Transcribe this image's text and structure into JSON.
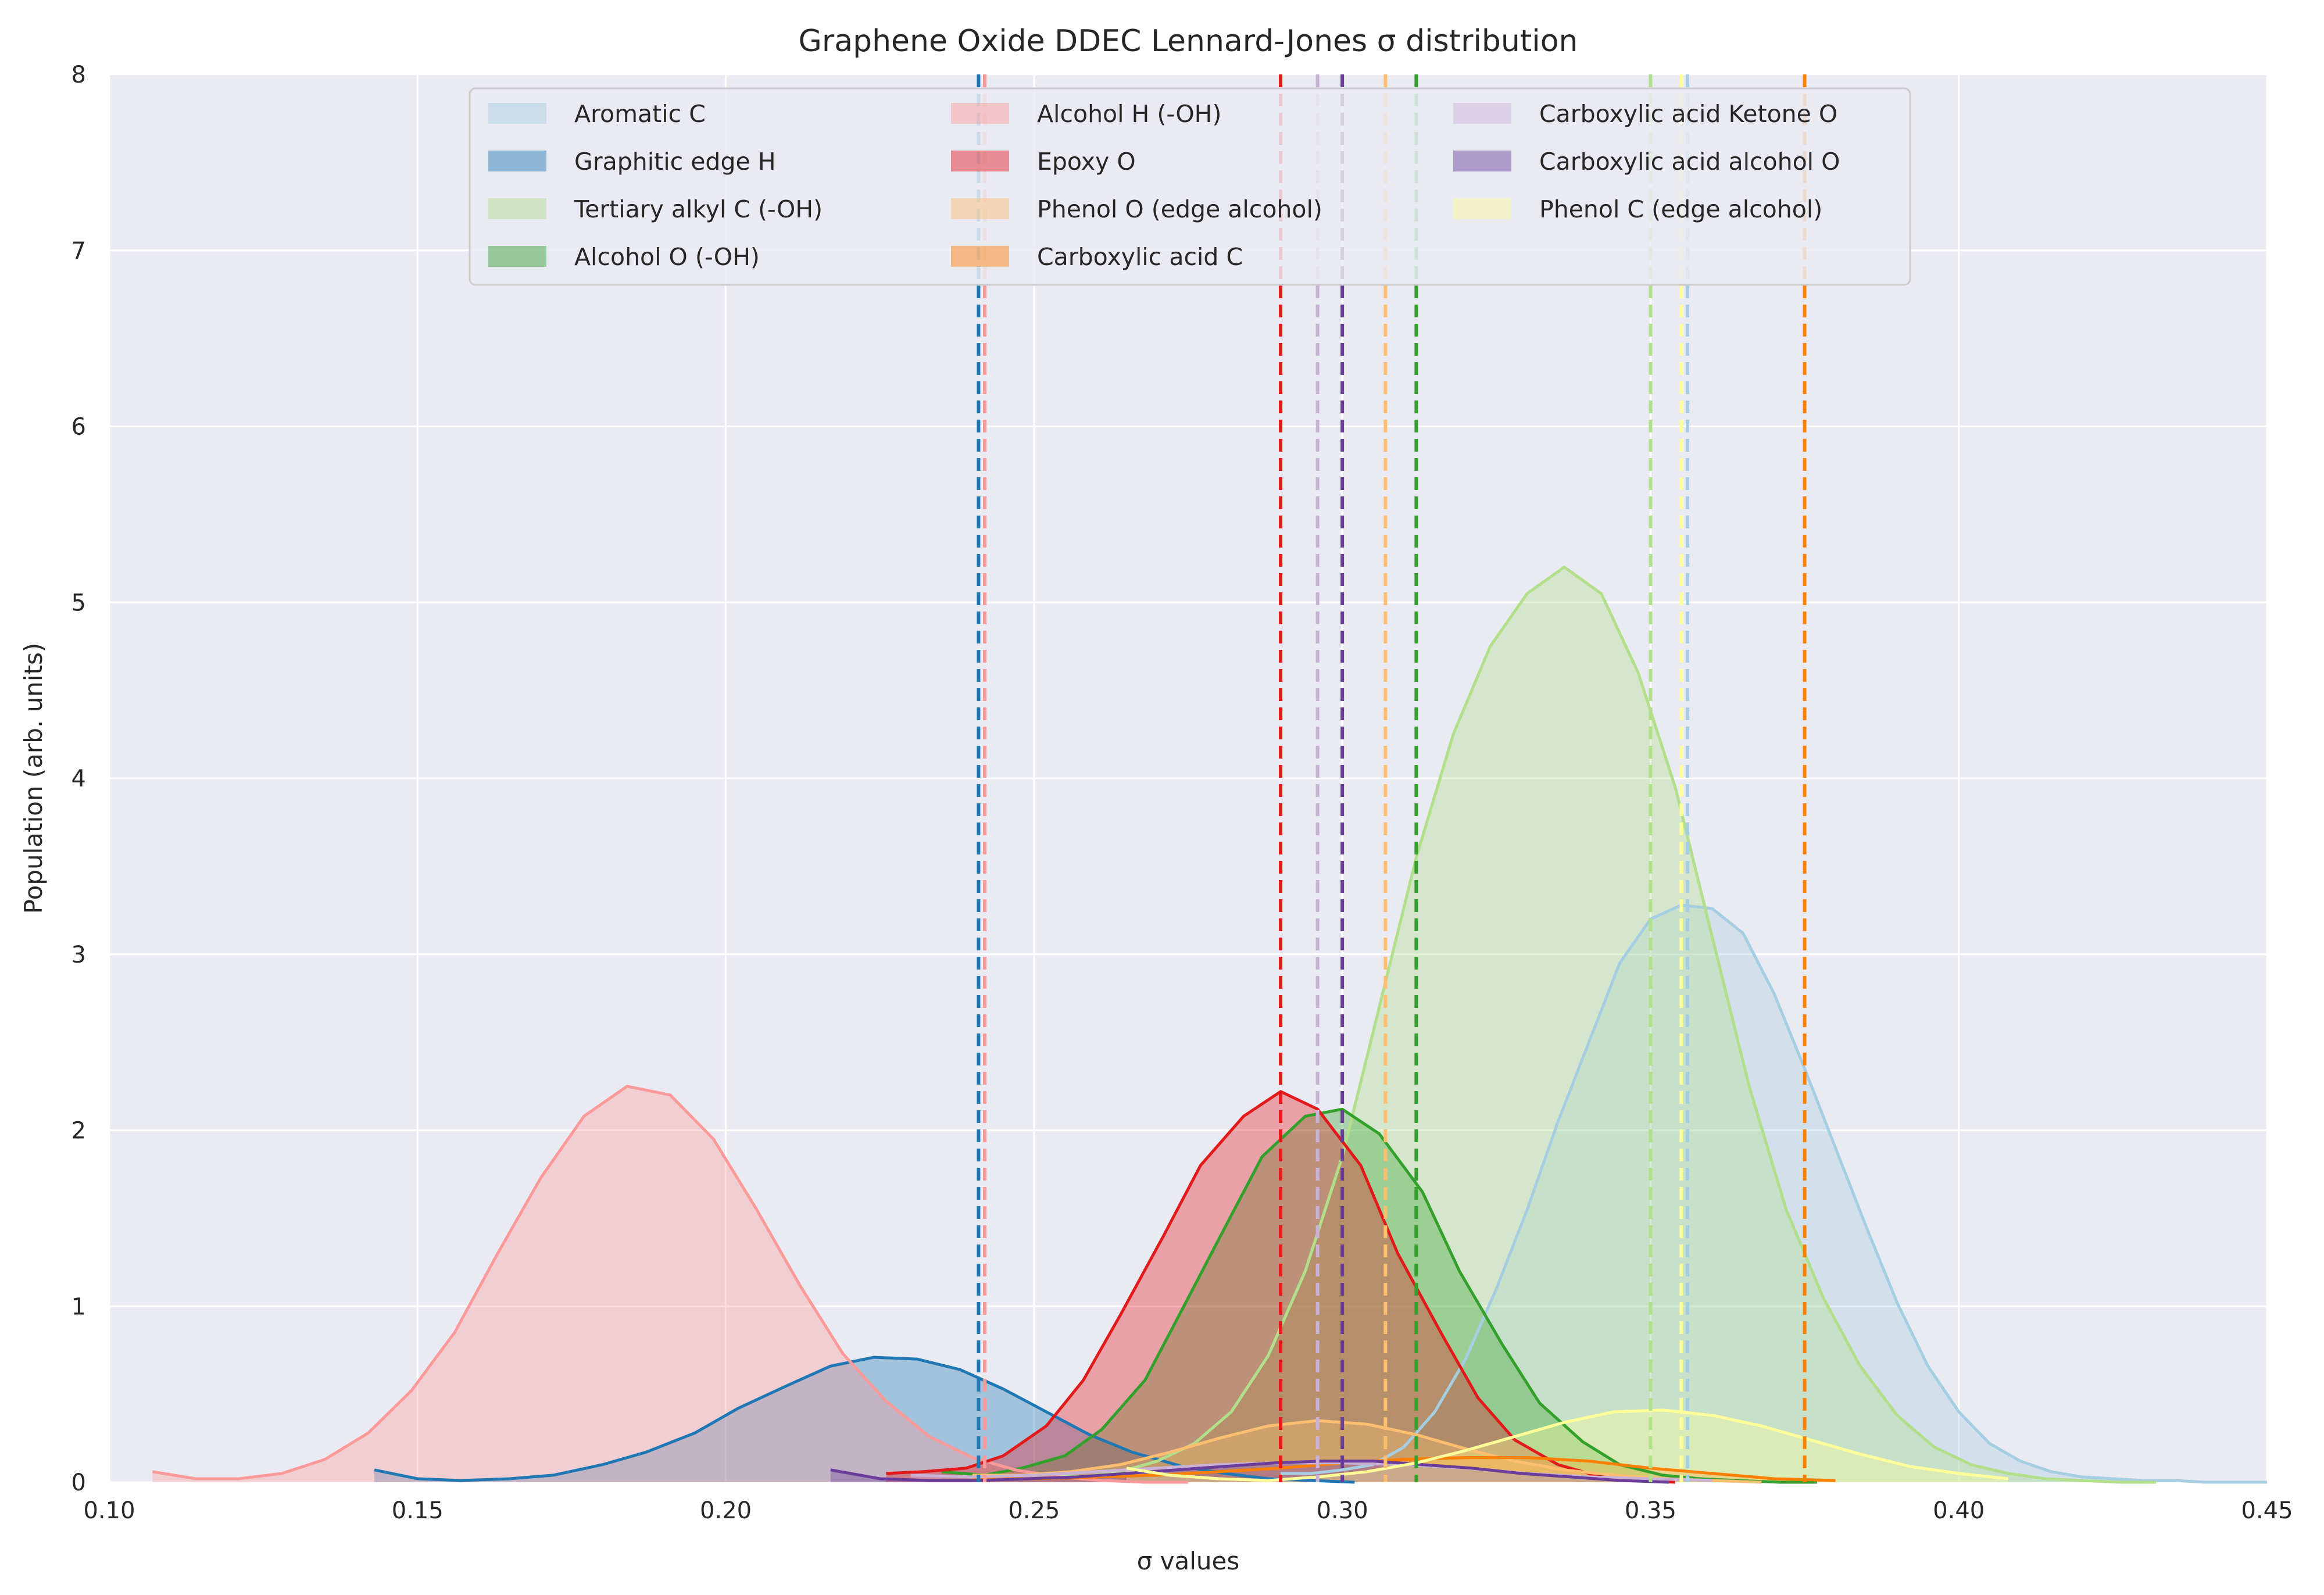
{
  "chart_data": {
    "type": "area",
    "title": "Graphene Oxide DDEC Lennard-Jones σ distribution",
    "xlabel": "σ values",
    "ylabel": "Population (arb. units)",
    "xlim": [
      0.1,
      0.45
    ],
    "ylim": [
      0,
      8
    ],
    "xticks": [
      "0.10",
      "0.15",
      "0.20",
      "0.25",
      "0.30",
      "0.35",
      "0.40",
      "0.45"
    ],
    "yticks": [
      "0",
      "1",
      "2",
      "3",
      "4",
      "5",
      "6",
      "7",
      "8"
    ],
    "grid": true,
    "legend_position": "top-center",
    "series": [
      {
        "name": "Aromatic C",
        "color": "#a6cee3",
        "mean": 0.356,
        "x": [
          0.29,
          0.295,
          0.3,
          0.305,
          0.31,
          0.315,
          0.32,
          0.325,
          0.33,
          0.335,
          0.34,
          0.345,
          0.35,
          0.355,
          0.36,
          0.365,
          0.37,
          0.375,
          0.38,
          0.385,
          0.39,
          0.395,
          0.4,
          0.405,
          0.41,
          0.415,
          0.42,
          0.425,
          0.43,
          0.435,
          0.44,
          0.445,
          0.45
        ],
        "y": [
          0.05,
          0.05,
          0.07,
          0.1,
          0.2,
          0.4,
          0.7,
          1.1,
          1.55,
          2.05,
          2.5,
          2.95,
          3.2,
          3.28,
          3.26,
          3.12,
          2.78,
          2.35,
          1.9,
          1.45,
          1.02,
          0.66,
          0.4,
          0.22,
          0.12,
          0.06,
          0.03,
          0.02,
          0.01,
          0.01,
          0.0,
          0.0,
          0.0
        ]
      },
      {
        "name": "Graphitic edge H",
        "color": "#1f78b4",
        "mean": 0.241,
        "x": [
          0.143,
          0.15,
          0.157,
          0.165,
          0.172,
          0.18,
          0.187,
          0.195,
          0.202,
          0.21,
          0.217,
          0.224,
          0.231,
          0.238,
          0.245,
          0.252,
          0.259,
          0.266,
          0.274,
          0.281,
          0.288,
          0.295,
          0.302
        ],
        "y": [
          0.07,
          0.02,
          0.01,
          0.02,
          0.04,
          0.1,
          0.17,
          0.28,
          0.42,
          0.55,
          0.66,
          0.71,
          0.7,
          0.64,
          0.53,
          0.4,
          0.27,
          0.17,
          0.09,
          0.05,
          0.02,
          0.01,
          0.0
        ]
      },
      {
        "name": "Tertiary alkyl C (-OH)",
        "color": "#b2df8a",
        "mean": 0.35,
        "x": [
          0.252,
          0.258,
          0.264,
          0.27,
          0.276,
          0.282,
          0.288,
          0.294,
          0.3,
          0.306,
          0.312,
          0.318,
          0.324,
          0.33,
          0.336,
          0.342,
          0.348,
          0.354,
          0.36,
          0.366,
          0.372,
          0.378,
          0.384,
          0.39,
          0.396,
          0.402,
          0.408,
          0.414,
          0.42,
          0.426,
          0.432
        ],
        "y": [
          0.05,
          0.03,
          0.06,
          0.12,
          0.22,
          0.4,
          0.72,
          1.2,
          1.85,
          2.7,
          3.55,
          4.25,
          4.75,
          5.05,
          5.2,
          5.05,
          4.6,
          3.95,
          3.1,
          2.25,
          1.55,
          1.05,
          0.66,
          0.38,
          0.2,
          0.1,
          0.05,
          0.02,
          0.01,
          0.0,
          0.0
        ]
      },
      {
        "name": "Alcohol O (-OH)",
        "color": "#33a02c",
        "mean": 0.312,
        "x": [
          0.235,
          0.242,
          0.248,
          0.255,
          0.261,
          0.268,
          0.274,
          0.281,
          0.287,
          0.294,
          0.3,
          0.306,
          0.313,
          0.319,
          0.326,
          0.332,
          0.339,
          0.345,
          0.352,
          0.358,
          0.364,
          0.371,
          0.377
        ],
        "y": [
          0.06,
          0.04,
          0.08,
          0.15,
          0.3,
          0.58,
          0.98,
          1.45,
          1.85,
          2.08,
          2.12,
          1.98,
          1.65,
          1.2,
          0.78,
          0.45,
          0.23,
          0.1,
          0.04,
          0.02,
          0.01,
          0.0,
          0.0
        ]
      },
      {
        "name": "Alcohol H (-OH)",
        "color": "#fb9a99",
        "mean": 0.242,
        "x": [
          0.107,
          0.114,
          0.121,
          0.128,
          0.135,
          0.142,
          0.149,
          0.156,
          0.163,
          0.17,
          0.177,
          0.184,
          0.191,
          0.198,
          0.205,
          0.212,
          0.219,
          0.226,
          0.233,
          0.24,
          0.247,
          0.254,
          0.261,
          0.268,
          0.275
        ],
        "y": [
          0.06,
          0.02,
          0.02,
          0.05,
          0.13,
          0.28,
          0.52,
          0.85,
          1.3,
          1.73,
          2.08,
          2.25,
          2.2,
          1.95,
          1.55,
          1.12,
          0.73,
          0.46,
          0.26,
          0.14,
          0.07,
          0.03,
          0.01,
          0.0,
          0.0
        ]
      },
      {
        "name": "Epoxy O",
        "color": "#e31a1c",
        "mean": 0.29,
        "x": [
          0.226,
          0.232,
          0.239,
          0.245,
          0.252,
          0.258,
          0.264,
          0.271,
          0.277,
          0.284,
          0.29,
          0.296,
          0.303,
          0.309,
          0.316,
          0.322,
          0.328,
          0.335,
          0.341,
          0.348,
          0.354
        ],
        "y": [
          0.05,
          0.06,
          0.08,
          0.15,
          0.32,
          0.58,
          0.95,
          1.4,
          1.8,
          2.08,
          2.22,
          2.12,
          1.8,
          1.3,
          0.85,
          0.48,
          0.24,
          0.1,
          0.04,
          0.01,
          0.0
        ]
      },
      {
        "name": "Phenol O (edge alcohol)",
        "color": "#fdbf6f",
        "mean": 0.307,
        "x": [
          0.24,
          0.248,
          0.256,
          0.264,
          0.272,
          0.28,
          0.288,
          0.296,
          0.304,
          0.312,
          0.32,
          0.328,
          0.336,
          0.344,
          0.352,
          0.36,
          0.368
        ],
        "y": [
          0.04,
          0.04,
          0.06,
          0.1,
          0.17,
          0.25,
          0.32,
          0.35,
          0.33,
          0.27,
          0.19,
          0.12,
          0.07,
          0.04,
          0.02,
          0.01,
          0.0
        ]
      },
      {
        "name": "Carboxylic acid C",
        "color": "#ff7f00",
        "mean": 0.375,
        "x": [
          0.24,
          0.25,
          0.26,
          0.27,
          0.28,
          0.29,
          0.3,
          0.31,
          0.32,
          0.33,
          0.34,
          0.35,
          0.36,
          0.37,
          0.38
        ],
        "y": [
          0.02,
          0.02,
          0.03,
          0.04,
          0.06,
          0.08,
          0.11,
          0.13,
          0.14,
          0.14,
          0.12,
          0.08,
          0.05,
          0.02,
          0.01
        ]
      },
      {
        "name": "Carboxylic acid Ketone O",
        "color": "#cab2d6",
        "mean": 0.296,
        "x": [
          0.23,
          0.24,
          0.25,
          0.26,
          0.27,
          0.28,
          0.29,
          0.3,
          0.31,
          0.32,
          0.33,
          0.34,
          0.35,
          0.36
        ],
        "y": [
          0.04,
          0.03,
          0.04,
          0.06,
          0.08,
          0.1,
          0.11,
          0.11,
          0.1,
          0.08,
          0.05,
          0.03,
          0.02,
          0.01
        ]
      },
      {
        "name": "Carboxylic acid alcohol O",
        "color": "#6a3d9a",
        "mean": 0.3,
        "x": [
          0.217,
          0.225,
          0.233,
          0.241,
          0.249,
          0.257,
          0.265,
          0.273,
          0.281,
          0.289,
          0.297,
          0.305,
          0.313,
          0.321,
          0.329,
          0.337,
          0.345,
          0.353
        ],
        "y": [
          0.07,
          0.02,
          0.01,
          0.01,
          0.02,
          0.03,
          0.05,
          0.07,
          0.09,
          0.11,
          0.12,
          0.12,
          0.1,
          0.08,
          0.05,
          0.03,
          0.01,
          0.0
        ]
      },
      {
        "name": "Phenol C (edge alcohol)",
        "color": "#ffff99",
        "mean": 0.355,
        "x": [
          0.265,
          0.272,
          0.28,
          0.288,
          0.296,
          0.304,
          0.312,
          0.32,
          0.328,
          0.336,
          0.344,
          0.352,
          0.36,
          0.368,
          0.376,
          0.384,
          0.392,
          0.4,
          0.408
        ],
        "y": [
          0.08,
          0.04,
          0.02,
          0.01,
          0.03,
          0.06,
          0.11,
          0.18,
          0.26,
          0.34,
          0.4,
          0.41,
          0.38,
          0.32,
          0.24,
          0.16,
          0.09,
          0.05,
          0.02
        ]
      }
    ]
  }
}
